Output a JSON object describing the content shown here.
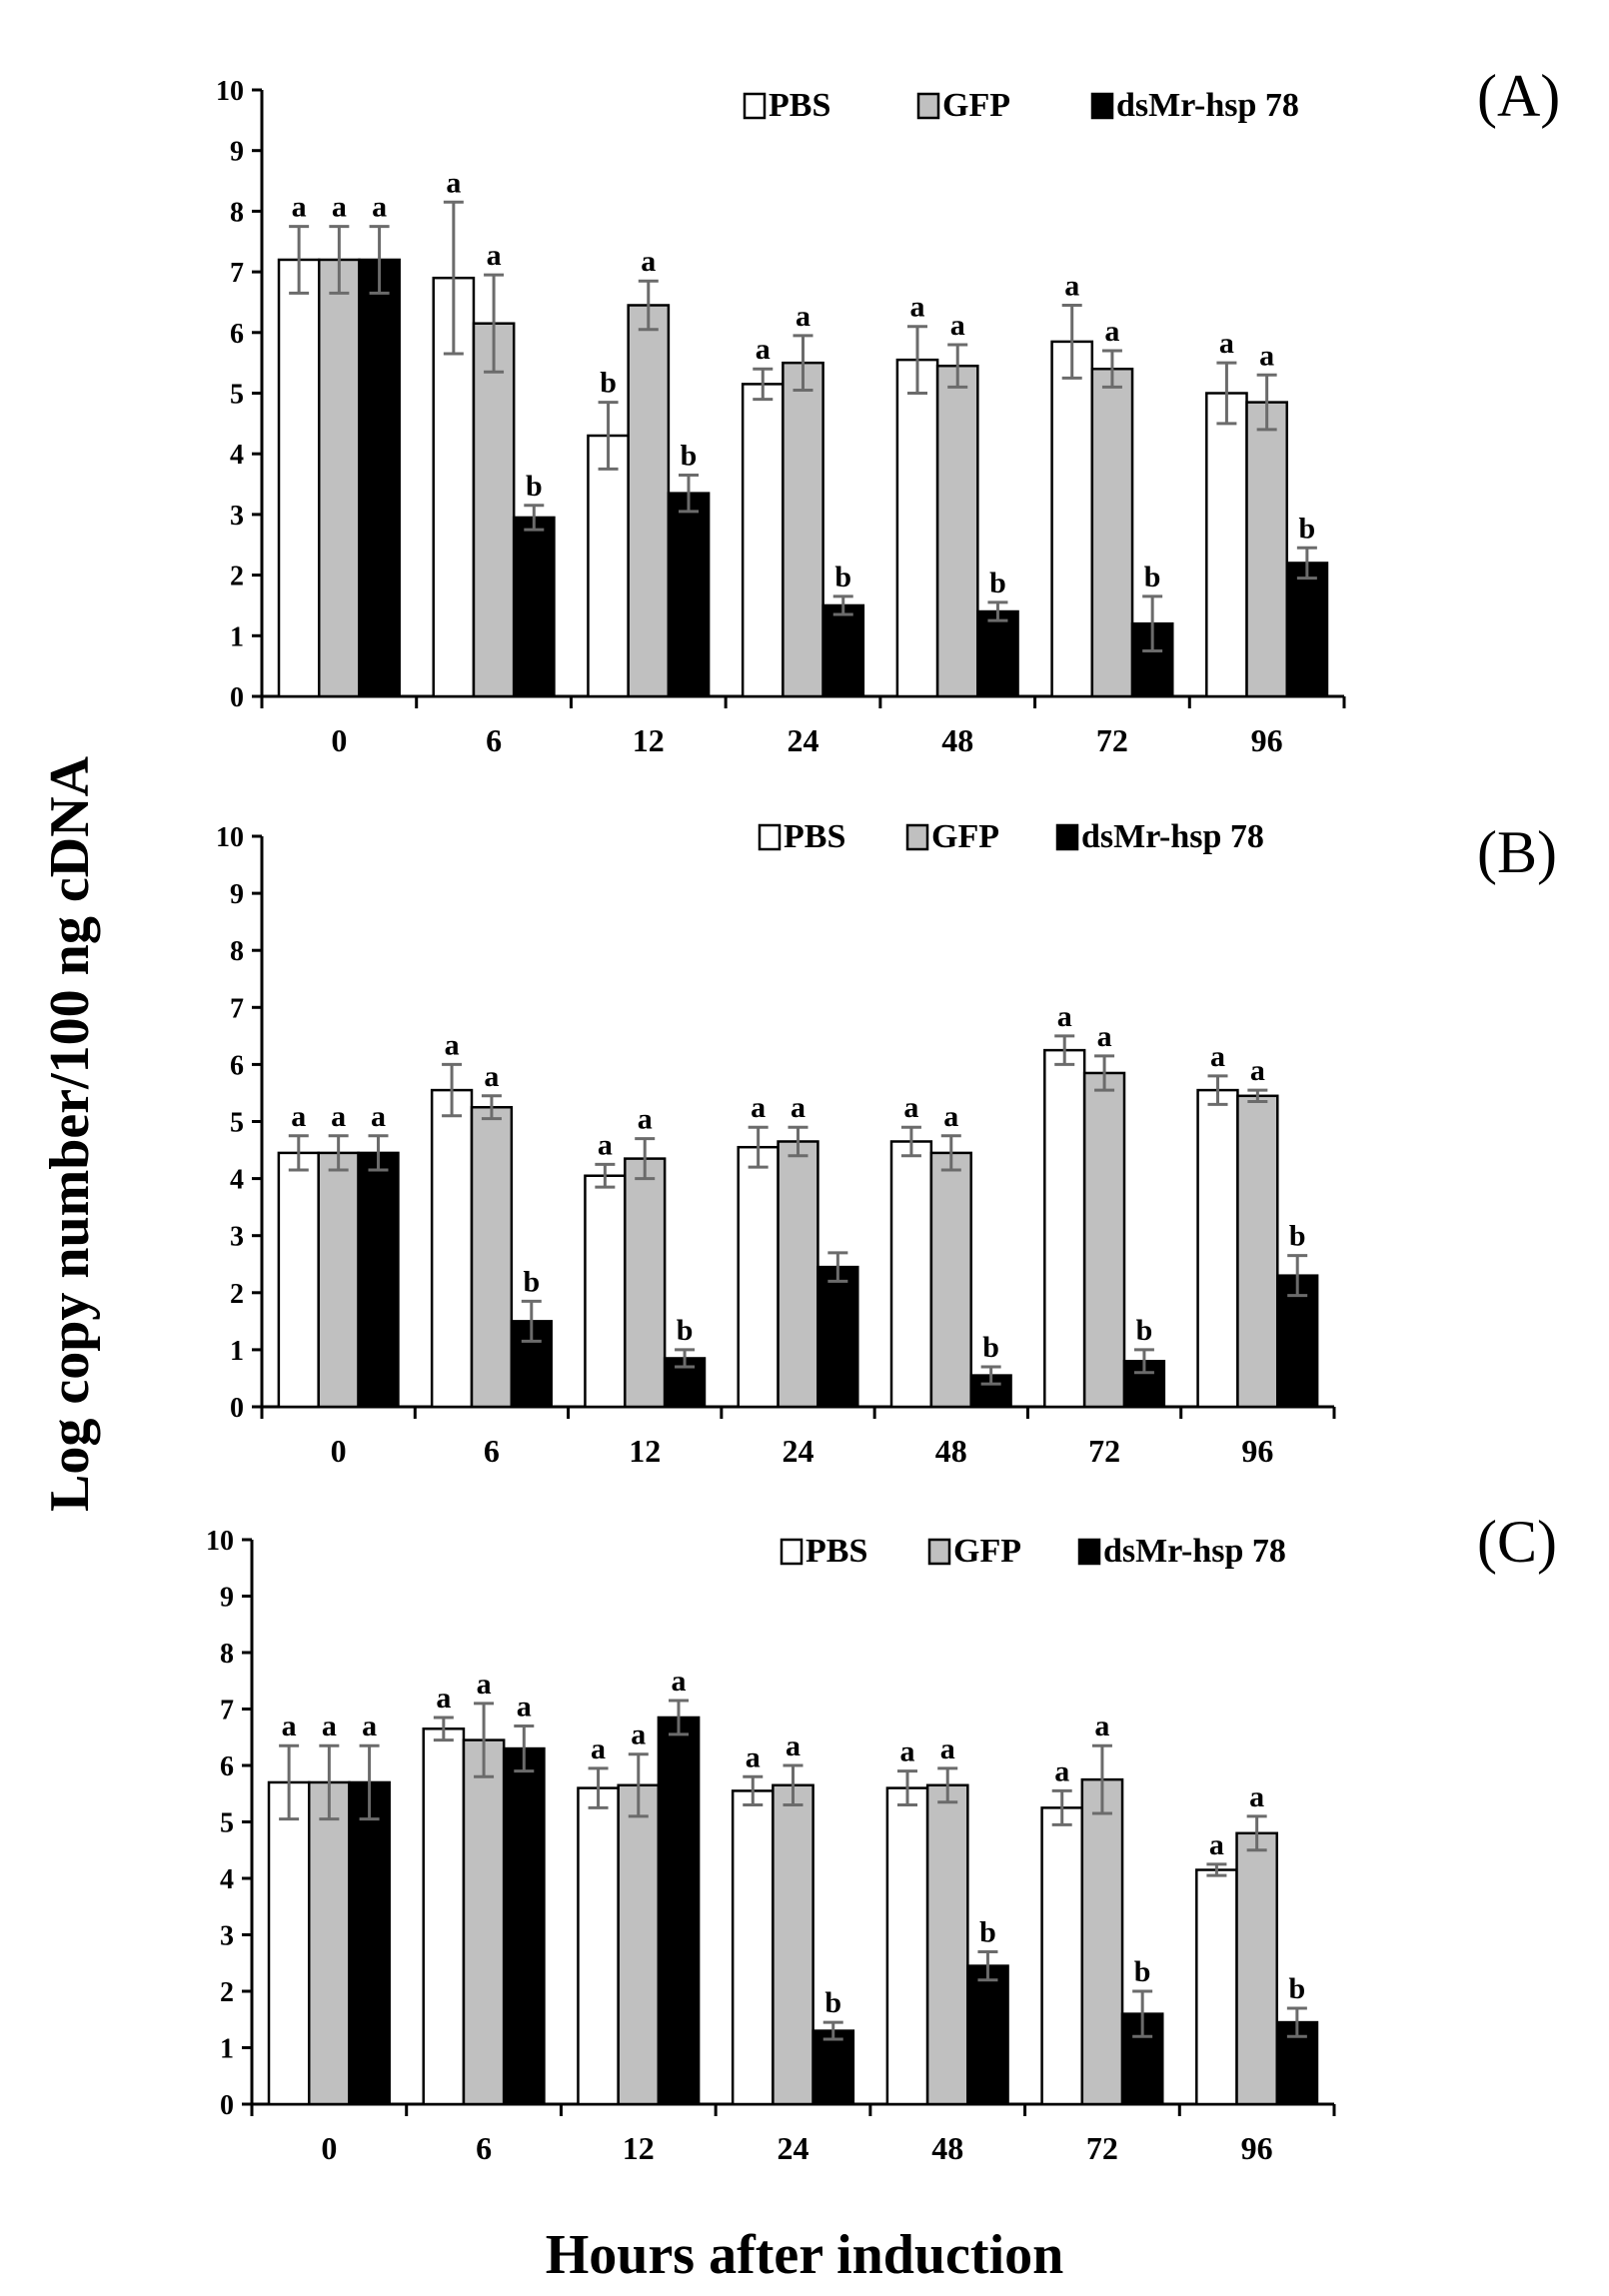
{
  "figure": {
    "ylabel": "Log copy number/100 ng cDNA",
    "xlabel": "Hours after induction"
  },
  "colors": {
    "PBS": "#ffffff",
    "GFP": "#c0c0c0",
    "dsMr-hsp78": "#000000",
    "errorbar": "#6b6b6b"
  },
  "chart_data": [
    {
      "type": "bar",
      "panel": "(A)",
      "categories": [
        "0",
        "6",
        "12",
        "24",
        "48",
        "72",
        "96"
      ],
      "ylim": [
        0,
        10
      ],
      "yticks": [
        "0",
        "1",
        "2",
        "3",
        "4",
        "5",
        "6",
        "7",
        "8",
        "9",
        "10"
      ],
      "legend": [
        "PBS",
        "GFP",
        "dsMr-hsp 78"
      ],
      "series": [
        {
          "name": "PBS",
          "values": [
            7.2,
            6.9,
            4.3,
            5.15,
            5.55,
            5.85,
            5.0
          ],
          "errors": [
            0.55,
            1.25,
            0.55,
            0.25,
            0.55,
            0.6,
            0.5
          ],
          "labels": [
            "a",
            "a",
            "b",
            "a",
            "a",
            "a",
            "a"
          ]
        },
        {
          "name": "GFP",
          "values": [
            7.2,
            6.15,
            6.45,
            5.5,
            5.45,
            5.4,
            4.85
          ],
          "errors": [
            0.55,
            0.8,
            0.4,
            0.45,
            0.35,
            0.3,
            0.45
          ],
          "labels": [
            "a",
            "a",
            "a",
            "a",
            "a",
            "a",
            "a"
          ]
        },
        {
          "name": "dsMr-hsp 78",
          "values": [
            7.2,
            2.95,
            3.35,
            1.5,
            1.4,
            1.2,
            2.2
          ],
          "errors": [
            0.55,
            0.2,
            0.3,
            0.15,
            0.15,
            0.45,
            0.25
          ],
          "labels": [
            "a",
            "b",
            "b",
            "b",
            "b",
            "b",
            "b"
          ]
        }
      ]
    },
    {
      "type": "bar",
      "panel": "(B)",
      "categories": [
        "0",
        "6",
        "12",
        "24",
        "48",
        "72",
        "96"
      ],
      "ylim": [
        0,
        10
      ],
      "yticks": [
        "0",
        "1",
        "2",
        "3",
        "4",
        "5",
        "6",
        "7",
        "8",
        "9",
        "10"
      ],
      "legend": [
        "PBS",
        "GFP",
        "dsMr-hsp 78"
      ],
      "series": [
        {
          "name": "PBS",
          "values": [
            4.45,
            5.55,
            4.05,
            4.55,
            4.65,
            6.25,
            5.55
          ],
          "errors": [
            0.3,
            0.45,
            0.2,
            0.35,
            0.25,
            0.25,
            0.25
          ],
          "labels": [
            "a",
            "a",
            "a",
            "a",
            "a",
            "a",
            "a"
          ]
        },
        {
          "name": "GFP",
          "values": [
            4.45,
            5.25,
            4.35,
            4.65,
            4.45,
            5.85,
            5.45
          ],
          "errors": [
            0.3,
            0.2,
            0.35,
            0.25,
            0.3,
            0.3,
            0.1
          ],
          "labels": [
            "a",
            "a",
            "a",
            "a",
            "a",
            "a",
            "a"
          ]
        },
        {
          "name": "dsMr-hsp 78",
          "values": [
            4.45,
            1.5,
            0.85,
            2.45,
            0.55,
            0.8,
            2.3
          ],
          "errors": [
            0.3,
            0.35,
            0.15,
            0.25,
            0.15,
            0.2,
            0.35
          ],
          "labels": [
            "a",
            "b",
            "b",
            "",
            "b",
            "b",
            "b"
          ]
        }
      ]
    },
    {
      "type": "bar",
      "panel": "(C)",
      "categories": [
        "0",
        "6",
        "12",
        "24",
        "48",
        "72",
        "96"
      ],
      "ylim": [
        0,
        10
      ],
      "yticks": [
        "0",
        "1",
        "2",
        "3",
        "4",
        "5",
        "6",
        "7",
        "8",
        "9",
        "10"
      ],
      "legend": [
        "PBS",
        "GFP",
        "dsMr-hsp 78"
      ],
      "series": [
        {
          "name": "PBS",
          "values": [
            5.7,
            6.65,
            5.6,
            5.55,
            5.6,
            5.25,
            4.15
          ],
          "errors": [
            0.65,
            0.2,
            0.35,
            0.25,
            0.3,
            0.3,
            0.1
          ],
          "labels": [
            "a",
            "a",
            "a",
            "a",
            "a",
            "a",
            "a"
          ]
        },
        {
          "name": "GFP",
          "values": [
            5.7,
            6.45,
            5.65,
            5.65,
            5.65,
            5.75,
            4.8
          ],
          "errors": [
            0.65,
            0.65,
            0.55,
            0.35,
            0.3,
            0.6,
            0.3
          ],
          "labels": [
            "a",
            "a",
            "a",
            "a",
            "a",
            "a",
            "a"
          ]
        },
        {
          "name": "dsMr-hsp 78",
          "values": [
            5.7,
            6.3,
            6.85,
            1.3,
            2.45,
            1.6,
            1.45
          ],
          "errors": [
            0.65,
            0.4,
            0.3,
            0.15,
            0.25,
            0.4,
            0.25
          ],
          "labels": [
            "a",
            "a",
            "a",
            "b",
            "b",
            "b",
            "b"
          ]
        }
      ]
    }
  ]
}
